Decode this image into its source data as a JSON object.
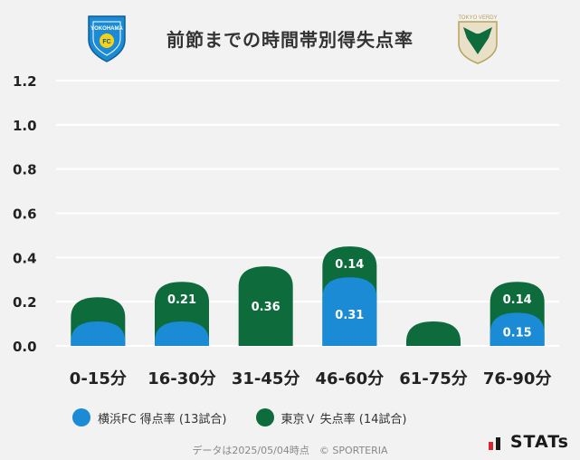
{
  "title": "前節までの時間帯別得失点率",
  "logos": {
    "home_icon": "yokohama-fc-crest-icon",
    "home_text": "YOKOHAMA",
    "home_badge": "FC",
    "away_icon": "tokyo-verdy-crest-icon",
    "away_text": "TOKYO VERDY"
  },
  "colors": {
    "home": "#1a8bd4",
    "away": "#0d6b3c",
    "background": "#f2f2f2",
    "grid": "#ffffff"
  },
  "chart_data": {
    "type": "bar",
    "categories": [
      "0-15分",
      "16-30分",
      "31-45分",
      "46-60分",
      "61-75分",
      "76-90分"
    ],
    "series": [
      {
        "name": "横浜FC 得点率 (13試合)",
        "values": [
          0.08,
          0.08,
          0.0,
          0.31,
          0.0,
          0.15
        ],
        "labels": [
          "",
          "",
          "",
          "0.31",
          "",
          "0.15"
        ]
      },
      {
        "name": "東京Ｖ 失点率 (14試合)",
        "values": [
          0.14,
          0.21,
          0.36,
          0.14,
          0.07,
          0.14
        ],
        "labels": [
          "",
          "0.21",
          "0.36",
          "0.14",
          "",
          "0.14"
        ]
      }
    ],
    "yticks": [
      "0.0",
      "0.2",
      "0.4",
      "0.6",
      "0.8",
      "1.0",
      "1.2"
    ],
    "ylim": [
      0,
      1.2
    ],
    "stacked": true,
    "grid": true,
    "legend": "bottom"
  },
  "legend": {
    "home_label": "横浜FC 得点率 (13試合)",
    "away_label": "東京Ｖ 失点率 (14試合)"
  },
  "footer": {
    "note": "データは2025/05/04時点　© SPORTERIA",
    "brand": "STATs"
  }
}
